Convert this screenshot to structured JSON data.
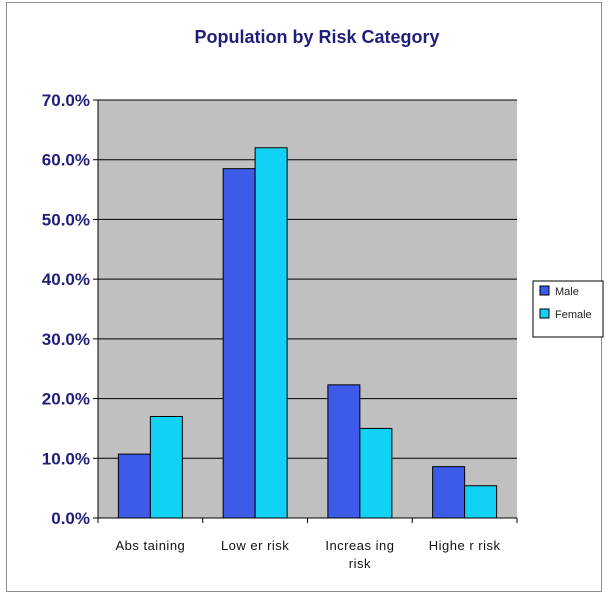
{
  "chart_data": {
    "type": "bar",
    "title": "Population by Risk Category",
    "xlabel": "",
    "ylabel": "",
    "categories": [
      "Abs taining",
      "Low er risk",
      "Increasing risk",
      "Higher risk"
    ],
    "category_lines": [
      [
        "Abs taining"
      ],
      [
        "Low er risk"
      ],
      [
        "Increas ing",
        "risk"
      ],
      [
        "Highe r risk"
      ]
    ],
    "series": [
      {
        "name": "Male",
        "color": "#3b5be8",
        "values": [
          10.7,
          58.5,
          22.3,
          8.6
        ]
      },
      {
        "name": "Female",
        "color": "#11d2f5",
        "values": [
          17.0,
          62.0,
          15.0,
          5.4
        ]
      }
    ],
    "ylim": [
      0,
      70
    ],
    "ytick_values": [
      0,
      10,
      20,
      30,
      40,
      50,
      60,
      70
    ],
    "ytick_labels": [
      "0.0%",
      "10.0%",
      "20.0%",
      "30.0%",
      "40.0%",
      "50.0%",
      "60.0%",
      "70.0%"
    ],
    "grid": true,
    "plot_background": "#c0c0c0",
    "legend_position": "right"
  }
}
